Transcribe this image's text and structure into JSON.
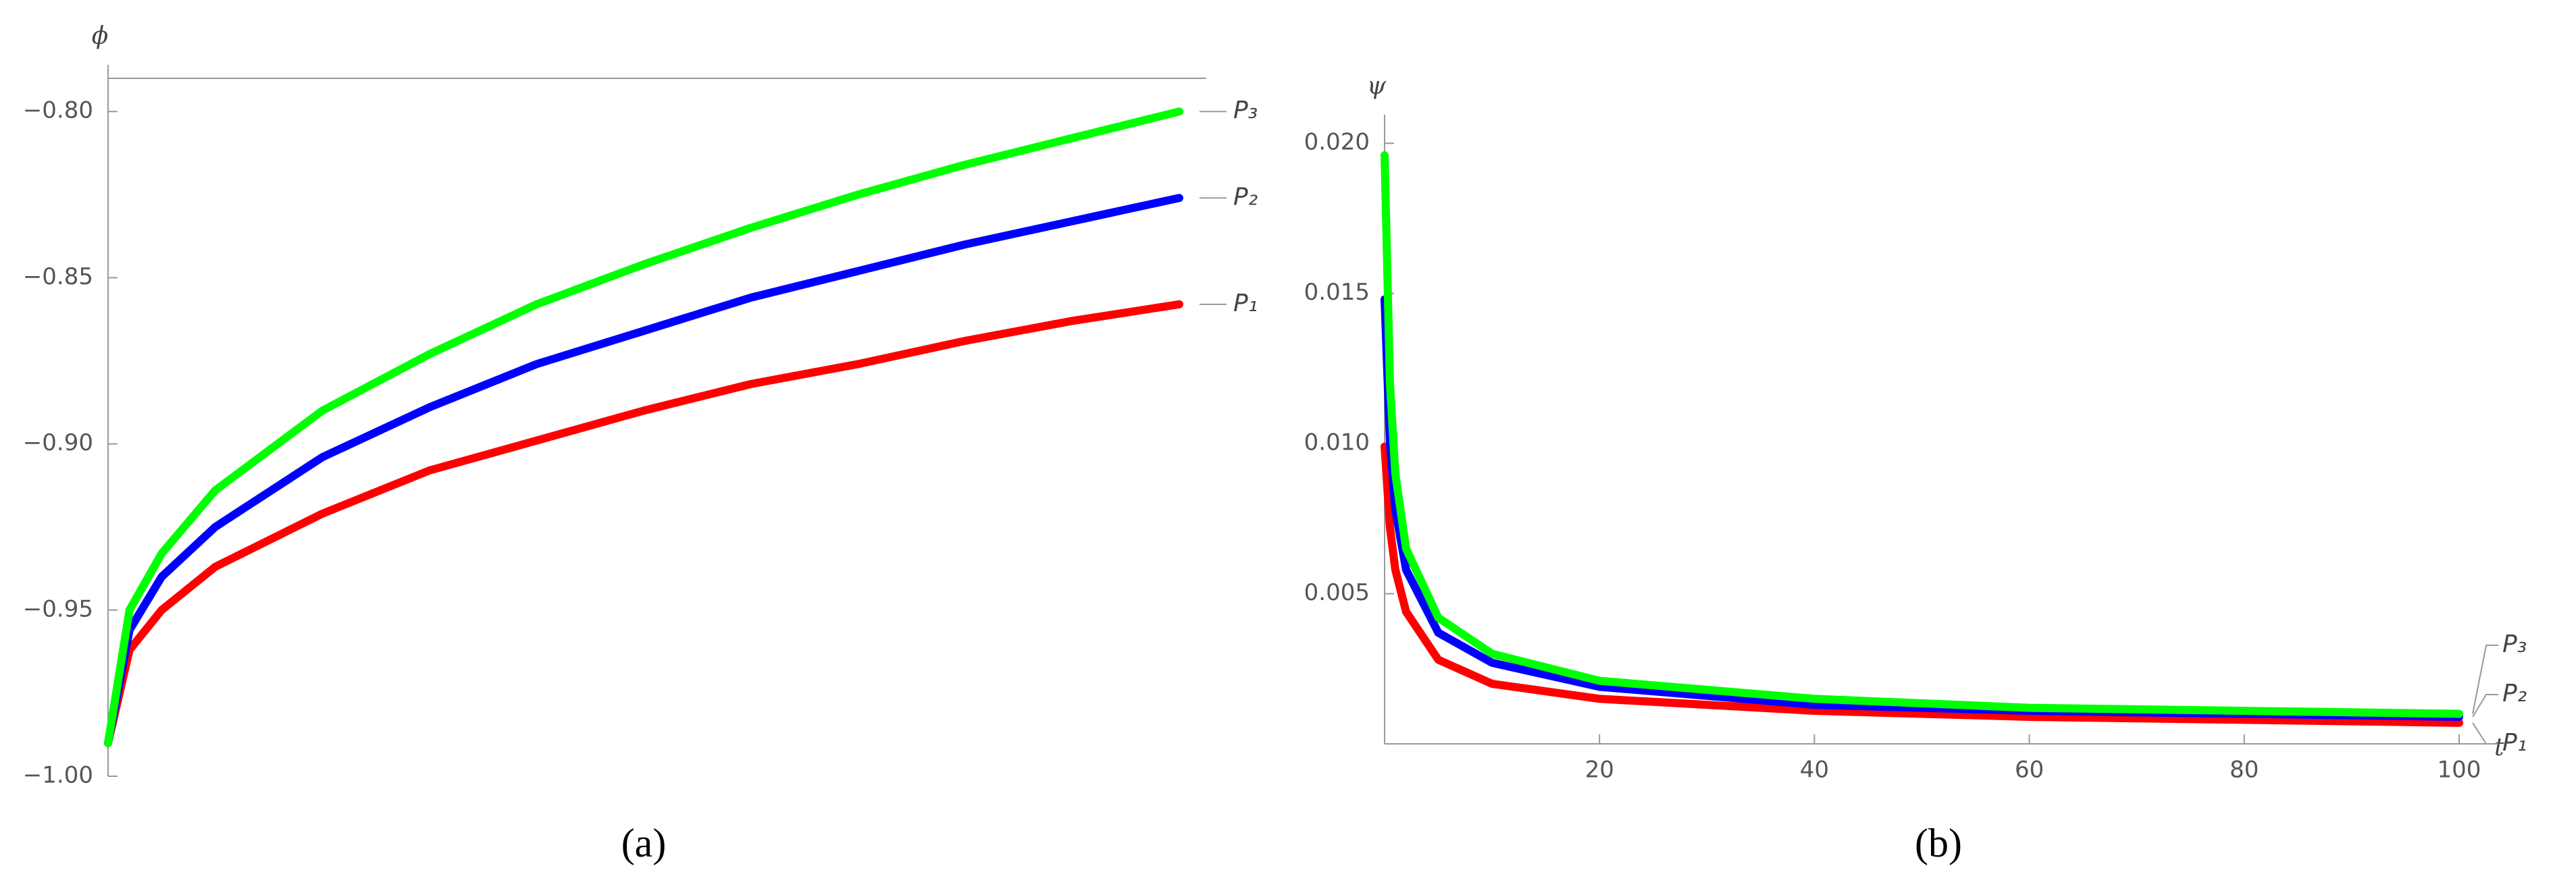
{
  "chart_data": [
    {
      "type": "line",
      "y_label": "ϕ",
      "caption": "(a)",
      "x": [
        0,
        2,
        5,
        10,
        20,
        30,
        40,
        50,
        60,
        70,
        80,
        90,
        100
      ],
      "xlim": [
        0,
        100
      ],
      "ylim": [
        -1.0,
        -0.79
      ],
      "yticks": [
        {
          "value": -1.0,
          "label": "−1.00"
        },
        {
          "value": -0.95,
          "label": "−0.95"
        },
        {
          "value": -0.9,
          "label": "−0.90"
        },
        {
          "value": -0.85,
          "label": "−0.85"
        },
        {
          "value": -0.8,
          "label": "−0.80"
        }
      ],
      "series": [
        {
          "name": "P₁",
          "color": "#ff0000",
          "values": [
            -0.99,
            -0.962,
            -0.95,
            -0.937,
            -0.921,
            -0.908,
            -0.899,
            -0.89,
            -0.882,
            -0.876,
            -0.869,
            -0.863,
            -0.858
          ]
        },
        {
          "name": "P₂",
          "color": "#0000ff",
          "values": [
            -0.99,
            -0.956,
            -0.94,
            -0.925,
            -0.904,
            -0.889,
            -0.876,
            -0.866,
            -0.856,
            -0.848,
            -0.84,
            -0.833,
            -0.826
          ]
        },
        {
          "name": "P₃",
          "color": "#00ff00",
          "values": [
            -0.99,
            -0.95,
            -0.933,
            -0.914,
            -0.89,
            -0.873,
            -0.858,
            -0.846,
            -0.835,
            -0.825,
            -0.816,
            -0.808,
            -0.8
          ]
        }
      ]
    },
    {
      "type": "line",
      "y_label": "ψ",
      "x_label": "t",
      "caption": "(b)",
      "x": [
        0,
        0.5,
        1,
        2,
        5,
        10,
        20,
        40,
        60,
        80,
        100
      ],
      "xlim": [
        0,
        100
      ],
      "xticks": [
        20,
        40,
        60,
        80,
        100
      ],
      "ylim": [
        0,
        0.0205
      ],
      "yticks": [
        0.005,
        {
          "value": 0.01,
          "label": "0.010"
        },
        0.015,
        {
          "value": 0.02,
          "label": "0.020"
        }
      ],
      "series": [
        {
          "name": "P₁",
          "color": "#ff0000",
          "values": [
            0.0099,
            0.0072,
            0.0058,
            0.0044,
            0.0028,
            0.002,
            0.0015,
            0.0011,
            0.0009,
            0.0008,
            0.0007
          ]
        },
        {
          "name": "P₂",
          "color": "#0000ff",
          "values": [
            0.0148,
            0.01,
            0.0078,
            0.0058,
            0.0037,
            0.0027,
            0.0019,
            0.0013,
            0.0011,
            0.001,
            0.0009
          ]
        },
        {
          "name": "P₃",
          "color": "#00ff00",
          "values": [
            0.0196,
            0.012,
            0.009,
            0.0065,
            0.0042,
            0.003,
            0.0021,
            0.0015,
            0.0012,
            0.0011,
            0.001
          ]
        }
      ]
    }
  ]
}
